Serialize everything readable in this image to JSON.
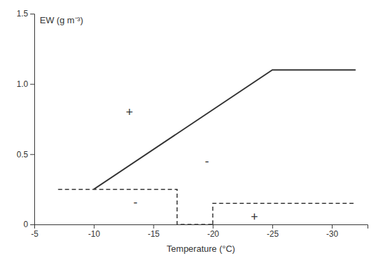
{
  "chart_data": {
    "type": "line",
    "xlabel": "Temperature (°C)",
    "ylabel": "EW (g m⁻³)",
    "color": "#333333",
    "grid": false,
    "xlim": [
      -5,
      -33
    ],
    "ylim": [
      0,
      1.5
    ],
    "xticks": [
      -5,
      -10,
      -15,
      -20,
      -25,
      -30
    ],
    "yticks": [
      0,
      0.5,
      {
        "value": 1.0,
        "label": "1.0"
      },
      1.5
    ],
    "series": [
      {
        "x": [
          -10,
          -25,
          -32
        ],
        "values": [
          0.25,
          1.1,
          1.1
        ],
        "line_style": "solid"
      },
      {
        "x": [
          -7,
          -16.5,
          -16.5,
          -17,
          -17,
          -20
        ],
        "values": [
          0.25,
          0.25,
          0.25,
          0.25,
          0.0,
          0.0
        ],
        "line_style": "dashed"
      },
      {
        "x": [
          -20,
          -20,
          -20.5,
          -20.5,
          -32
        ],
        "values": [
          0.0,
          0.15,
          0.15,
          0.15,
          0.15
        ],
        "line_style": "dashed"
      }
    ],
    "annotations": [
      {
        "text": "+",
        "x": -13,
        "y": 0.8
      },
      {
        "text": "-",
        "x": -13.5,
        "y": 0.155
      },
      {
        "text": "-",
        "x": -19.5,
        "y": 0.45
      },
      {
        "text": "+",
        "x": -23.5,
        "y": 0.055
      }
    ]
  }
}
